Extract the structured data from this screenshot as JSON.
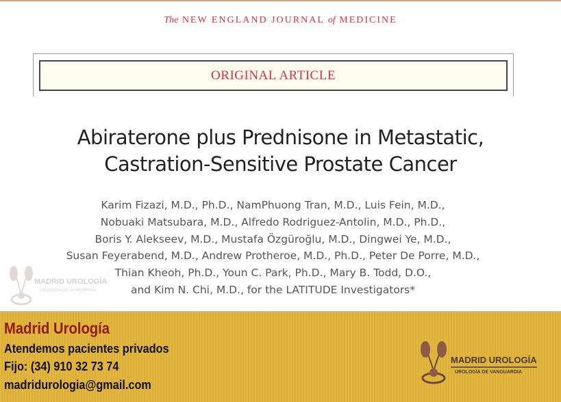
{
  "journal": {
    "the": "The",
    "name_part1": "NEW ENGLAND JOURNAL",
    "of": "of",
    "name_part2": "MEDICINE"
  },
  "article_type": "ORIGINAL ARTICLE",
  "title": {
    "line1": "Abiraterone plus Prednisone in Metastatic,",
    "line2": "Castration-Sensitive Prostate Cancer"
  },
  "authors": [
    "Karim Fizazi, M.D., Ph.D., NamPhuong Tran, M.D., Luis Fein, M.D.,",
    "Nobuaki Matsubara, M.D., Alfredo Rodriguez-Antolin, M.D., Ph.D.,",
    "Boris Y. Alekseev, M.D., Mustafa Özgüroğlu, M.D., Dingwei Ye, M.D.,",
    "Susan Feyerabend, M.D., Andrew Protheroe, M.D., Ph.D., Peter De Porre, M.D.,",
    "Thian Kheoh, Ph.D., Youn C. Park, Ph.D., Mary B. Todd, D.O.,",
    "and Kim N. Chi, M.D., for the LATITUDE Investigators*"
  ],
  "footer": {
    "name": "Madrid Urología",
    "line1": "Atendemos pacientes privados",
    "phone": "Fijo:  (34) 910 32 73 74",
    "email": "madridurologia@gmail.com"
  },
  "logo": {
    "name": "MADRID UROLOGÍA",
    "tagline": "UROLOGÍA DE VANGUARDIA",
    "icon": "kidney-icon"
  },
  "colors": {
    "journal_red": "#d6333f",
    "footer_bg": "#e3b63f",
    "brand_red": "#8e1b0c"
  }
}
